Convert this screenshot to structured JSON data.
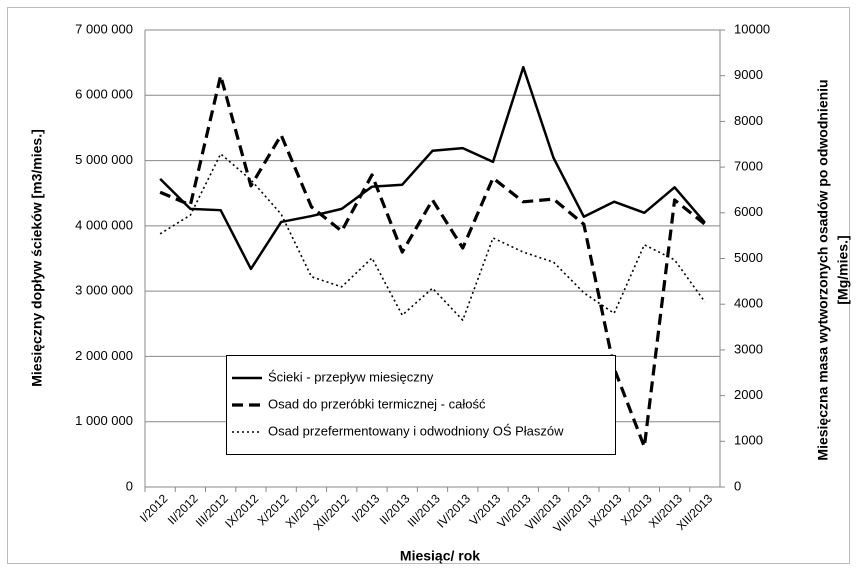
{
  "chart_data": {
    "type": "line",
    "xlabel": "Miesiąc/ rok",
    "ylabel": "Miesięczny dopływ ścieków [m3/mies.]",
    "y2label": [
      "Miesięczna masa wytworzonych osadów po odwodnieniu",
      "[Mg/mies.]"
    ],
    "categories": [
      "I/2012",
      "II/2012",
      "III/2012",
      "IX/2012",
      "X/2012",
      "XI/2012",
      "XII/2012",
      "I/2013",
      "II/2013",
      "III/2013",
      "IV/2013",
      "V/2013",
      "VI/2013",
      "VII/2013",
      "VIII/2013",
      "IX/2013",
      "X/2013",
      "XI/2013",
      "XII/2013"
    ],
    "series": [
      {
        "name": "Ścieki - przepływ miesięczny",
        "color": "#000000",
        "dash": "solid",
        "values": [
          4720000,
          4260000,
          4240000,
          3340000,
          4060000,
          4150000,
          4260000,
          4600000,
          4630000,
          5150000,
          5190000,
          4980000,
          6430000,
          5040000,
          4140000,
          4370000,
          4200000,
          4590000,
          4050000
        ]
      },
      {
        "name": "Osad do przeróbki termicznej - całość",
        "color": "#000000",
        "dash": "dashed",
        "axis": "y2",
        "values": [
          6450,
          6170,
          9000,
          6590,
          7700,
          6130,
          5600,
          6830,
          5140,
          6280,
          5230,
          6760,
          6240,
          6300,
          5750,
          2600,
          880,
          6280,
          5750
        ]
      },
      {
        "name": "Osad przefermentowany i odwodniony OŚ Płaszów",
        "color": "#000000",
        "dash": "dotted",
        "axis": "y2",
        "values": [
          5540,
          5950,
          7290,
          6720,
          5970,
          4600,
          4380,
          5010,
          3760,
          4350,
          3650,
          5450,
          5140,
          4920,
          4250,
          3800,
          5300,
          4970,
          4050
        ]
      }
    ],
    "ylim": [
      0,
      7000000
    ],
    "yticks": [
      0,
      {
        "value": 1000000,
        "label": "1 000 000"
      },
      {
        "value": 2000000,
        "label": "2 000 000"
      },
      {
        "value": 3000000,
        "label": "3 000 000"
      },
      {
        "value": 4000000,
        "label": "4 000 000"
      },
      {
        "value": 5000000,
        "label": "5 000 000"
      },
      {
        "value": 6000000,
        "label": "6 000 000"
      },
      {
        "value": 7000000,
        "label": "7 000 000"
      }
    ],
    "y2lim": [
      0,
      10000
    ],
    "y2ticks": [
      0,
      1000,
      2000,
      3000,
      4000,
      5000,
      6000,
      7000,
      8000,
      9000,
      10000
    ],
    "grid": true
  }
}
